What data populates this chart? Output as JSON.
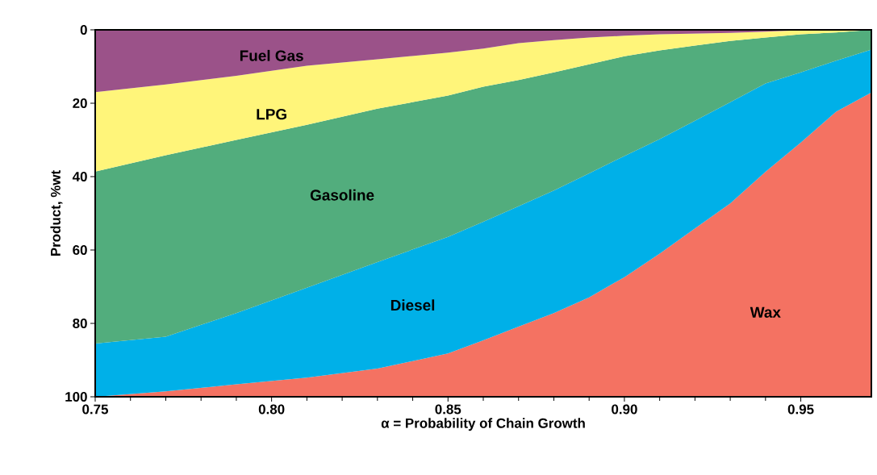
{
  "chart_data": {
    "type": "area",
    "stacked": true,
    "xlabel": "α = Probability of Chain Growth",
    "ylabel": "Product, %wt",
    "x": [
      0.75,
      0.77,
      0.79,
      0.81,
      0.83,
      0.85,
      0.86,
      0.87,
      0.88,
      0.89,
      0.9,
      0.91,
      0.92,
      0.93,
      0.94,
      0.95,
      0.96,
      0.97
    ],
    "xlim": [
      0.75,
      0.97
    ],
    "xticks": [
      {
        "value": 0.75,
        "label": "0.75"
      },
      {
        "value": 0.8,
        "label": "0.80"
      },
      {
        "value": 0.85,
        "label": "0.85"
      },
      {
        "value": 0.9,
        "label": "0.90"
      },
      {
        "value": 0.95,
        "label": "0.95"
      }
    ],
    "ylim": [
      100,
      0
    ],
    "yticks": [
      0,
      20,
      40,
      60,
      80,
      100
    ],
    "grid": false,
    "series": [
      {
        "name": "Fuel Gas",
        "color": "#9b5289",
        "values": [
          17.0,
          14.9,
          12.5,
          9.8,
          8.0,
          6.2,
          5.1,
          3.6,
          2.8,
          2.1,
          1.6,
          1.2,
          1.0,
          0.8,
          0.5,
          0.1,
          0,
          0
        ]
      },
      {
        "name": "LPG",
        "color": "#fff57a",
        "values": [
          21.6,
          19.3,
          17.5,
          16.1,
          13.5,
          11.7,
          10.4,
          10.1,
          8.8,
          7.3,
          5.6,
          4.4,
          3.3,
          2.2,
          1.6,
          1.1,
          0.7,
          0
        ]
      },
      {
        "name": "Gasoline",
        "color": "#52ad7d",
        "values": [
          46.9,
          49.4,
          47.2,
          44.4,
          41.8,
          38.5,
          36.8,
          34.4,
          32.2,
          29.7,
          27.2,
          24.2,
          20.5,
          16.7,
          12.5,
          10.4,
          7.7,
          5.4
        ]
      },
      {
        "name": "Diesel",
        "color": "#00b0e8",
        "values": [
          14.5,
          14.9,
          19.4,
          24.5,
          29.0,
          31.8,
          32.3,
          32.8,
          33.4,
          33.8,
          33.0,
          31.2,
          29.3,
          27.6,
          24.1,
          19.1,
          13.9,
          11.7
        ]
      },
      {
        "name": "Wax",
        "color": "#f47262",
        "values": [
          0,
          1.5,
          3.4,
          5.2,
          7.7,
          11.8,
          15.4,
          19.1,
          22.8,
          27.1,
          32.6,
          39.0,
          45.9,
          52.7,
          61.3,
          69.3,
          77.7,
          82.9
        ]
      }
    ]
  }
}
